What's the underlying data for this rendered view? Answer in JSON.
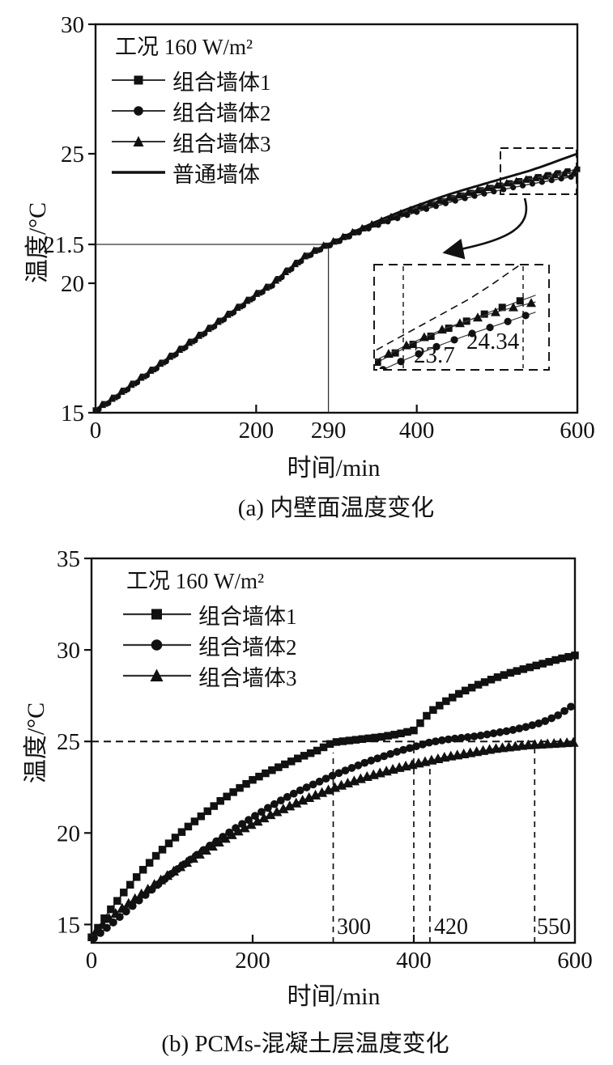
{
  "figure": {
    "captions": {
      "a": "(a) 内壁面温度变化",
      "b": "(b) PCMs-混凝土层温度变化"
    }
  },
  "chart_data": [
    {
      "id": "a",
      "type": "line",
      "title": "(a) 内壁面温度变化",
      "legend_title": "工况 160 W/m²",
      "legend_position": "top-left",
      "xlabel": "时间/min",
      "ylabel": "温度/°C",
      "xlim": [
        0,
        600
      ],
      "ylim": [
        15,
        30
      ],
      "grid": false,
      "x": [
        0,
        20,
        40,
        60,
        80,
        100,
        120,
        140,
        160,
        180,
        200,
        220,
        240,
        260,
        280,
        300,
        320,
        340,
        360,
        380,
        400,
        420,
        440,
        460,
        480,
        500,
        520,
        540,
        560,
        580,
        600
      ],
      "series": [
        {
          "name": "组合墙体1",
          "marker": "square",
          "y": [
            15.1,
            15.5,
            15.95,
            16.4,
            16.85,
            17.3,
            17.75,
            18.2,
            18.65,
            19.1,
            19.55,
            19.95,
            20.5,
            21.0,
            21.35,
            21.62,
            21.92,
            22.18,
            22.42,
            22.64,
            22.85,
            23.06,
            23.26,
            23.43,
            23.6,
            23.75,
            23.9,
            24.03,
            24.16,
            24.28,
            24.4
          ]
        },
        {
          "name": "组合墙体2",
          "marker": "circle",
          "y": [
            15.05,
            15.45,
            15.9,
            16.35,
            16.8,
            17.25,
            17.7,
            18.15,
            18.6,
            19.05,
            19.5,
            19.9,
            20.45,
            20.95,
            21.3,
            21.57,
            21.86,
            22.11,
            22.34,
            22.55,
            22.75,
            22.94,
            23.12,
            23.28,
            23.43,
            23.57,
            23.7,
            23.82,
            23.93,
            24.04,
            24.15
          ]
        },
        {
          "name": "组合墙体3",
          "marker": "triangle",
          "y": [
            15.15,
            15.55,
            16.0,
            16.45,
            16.9,
            17.35,
            17.8,
            18.25,
            18.7,
            19.15,
            19.6,
            20.0,
            20.55,
            21.05,
            21.4,
            21.67,
            21.97,
            22.23,
            22.47,
            22.7,
            22.92,
            23.12,
            23.3,
            23.47,
            23.63,
            23.78,
            23.92,
            24.03,
            24.13,
            24.22,
            24.3
          ]
        },
        {
          "name": "普通墙体",
          "marker": "none",
          "y": [
            15.1,
            15.5,
            15.95,
            16.4,
            16.85,
            17.3,
            17.75,
            18.2,
            18.65,
            19.1,
            19.55,
            19.95,
            20.5,
            21.0,
            21.35,
            21.65,
            21.97,
            22.25,
            22.52,
            22.77,
            23.0,
            23.22,
            23.43,
            23.62,
            23.8,
            23.98,
            24.16,
            24.34,
            24.55,
            24.78,
            25.0
          ]
        }
      ],
      "xticks": [
        {
          "v": 0,
          "label": "0"
        },
        {
          "v": 200,
          "label": "200"
        },
        {
          "v": 290,
          "label": "290",
          "tick": false
        },
        {
          "v": 400,
          "label": "400"
        },
        {
          "v": 600,
          "label": "600"
        }
      ],
      "yticks": [
        {
          "v": 15,
          "label": "15"
        },
        {
          "v": 20,
          "label": "20"
        },
        {
          "v": 21.5,
          "label": "21.5"
        },
        {
          "v": 25,
          "label": "25"
        },
        {
          "v": 30,
          "label": "30"
        }
      ],
      "reference_lines": {
        "h": 21.5,
        "v": 290
      },
      "inset": {
        "labels": [
          "23.7",
          "24.34"
        ],
        "magnified_x_range": [
          455,
          612
        ],
        "magnified_y_range": [
          23.3,
          24.85
        ]
      }
    },
    {
      "id": "b",
      "type": "line",
      "title": "(b) PCMs-混凝土层温度变化",
      "legend_title": "工况 160 W/m²",
      "legend_position": "top-left",
      "xlabel": "时间/min",
      "ylabel": "温度/°C",
      "xlim": [
        0,
        600
      ],
      "ylim": [
        14,
        35
      ],
      "grid": false,
      "x": [
        0,
        20,
        40,
        60,
        80,
        100,
        120,
        140,
        160,
        180,
        200,
        220,
        240,
        260,
        280,
        300,
        320,
        340,
        360,
        380,
        400,
        420,
        440,
        460,
        480,
        500,
        520,
        540,
        560,
        580,
        600
      ],
      "series": [
        {
          "name": "组合墙体1",
          "marker": "square",
          "y": [
            14.3,
            15.6,
            16.75,
            17.8,
            18.75,
            19.6,
            20.35,
            21.05,
            21.75,
            22.35,
            22.9,
            23.35,
            23.75,
            24.15,
            24.5,
            24.95,
            25.05,
            25.15,
            25.25,
            25.4,
            25.6,
            26.6,
            27.2,
            27.7,
            28.1,
            28.45,
            28.75,
            29.0,
            29.25,
            29.5,
            29.7
          ]
        },
        {
          "name": "组合墙体2",
          "marker": "circle",
          "y": [
            14.15,
            14.85,
            15.6,
            16.35,
            17.1,
            17.8,
            18.45,
            19.1,
            19.7,
            20.3,
            20.85,
            21.4,
            21.9,
            22.35,
            22.75,
            23.15,
            23.5,
            23.85,
            24.15,
            24.45,
            24.7,
            24.95,
            25.1,
            25.2,
            25.3,
            25.45,
            25.6,
            25.8,
            26.05,
            26.45,
            27.05
          ]
        },
        {
          "name": "组合墙体3",
          "marker": "triangle",
          "y": [
            14.4,
            15.25,
            15.95,
            16.6,
            17.25,
            17.85,
            18.45,
            19.0,
            19.55,
            20.05,
            20.5,
            20.95,
            21.35,
            21.75,
            22.1,
            22.45,
            22.75,
            23.05,
            23.3,
            23.55,
            23.75,
            23.95,
            24.15,
            24.3,
            24.45,
            24.6,
            24.7,
            24.8,
            24.85,
            24.9,
            24.95
          ]
        }
      ],
      "xticks": [
        {
          "v": 0,
          "label": "0"
        },
        {
          "v": 200,
          "label": "200"
        },
        {
          "v": 400,
          "label": "400"
        },
        {
          "v": 600,
          "label": "600"
        }
      ],
      "yticks": [
        {
          "v": 15,
          "label": "15"
        },
        {
          "v": 20,
          "label": "20"
        },
        {
          "v": 25,
          "label": "25"
        },
        {
          "v": 30,
          "label": "30"
        },
        {
          "v": 35,
          "label": "35"
        }
      ],
      "hline_dashed": 25,
      "vlines_dashed": [
        {
          "v": 300,
          "label": "300"
        },
        {
          "v": 400,
          "label": ""
        },
        {
          "v": 420,
          "label": "420"
        },
        {
          "v": 550,
          "label": "550"
        }
      ]
    }
  ],
  "colors": {
    "ink": "#111111",
    "series_line": "#3a3a3a"
  }
}
